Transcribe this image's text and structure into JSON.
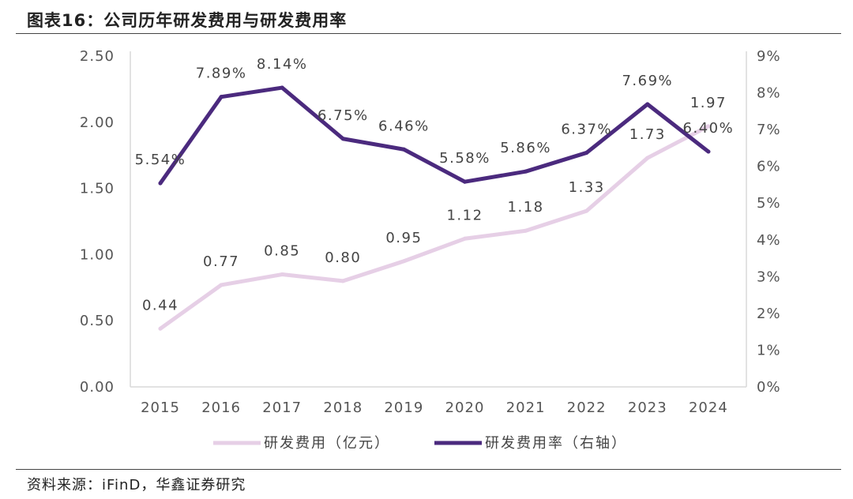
{
  "title": "图表16：公司历年研发费用与研发费用率",
  "source": "资料来源：iFinD，华鑫证券研究",
  "colors": {
    "expense": "#e6cfe6",
    "rate": "#4b2a7e",
    "axis": "#d9d9d9"
  },
  "chart_data": {
    "type": "line",
    "categories": [
      "2015",
      "2016",
      "2017",
      "2018",
      "2019",
      "2020",
      "2021",
      "2022",
      "2023",
      "2024"
    ],
    "series": [
      {
        "name": "研发费用（亿元）",
        "axis": "left",
        "values": [
          0.44,
          0.77,
          0.85,
          0.8,
          0.95,
          1.12,
          1.18,
          1.33,
          1.73,
          1.97
        ],
        "labels": [
          "0.44",
          "0.77",
          "0.85",
          "0.80",
          "0.95",
          "1.12",
          "1.18",
          "1.33",
          "1.73",
          "1.97"
        ]
      },
      {
        "name": "研发费用率（右轴）",
        "axis": "right",
        "values": [
          5.54,
          7.89,
          8.14,
          6.75,
          6.46,
          5.58,
          5.86,
          6.37,
          7.69,
          6.4
        ],
        "labels": [
          "5.54%",
          "7.89%",
          "8.14%",
          "6.75%",
          "6.46%",
          "5.58%",
          "5.86%",
          "6.37%",
          "7.69%",
          "6.40%"
        ]
      }
    ],
    "left_axis": {
      "ylim": [
        0,
        2.5
      ],
      "ticks": [
        "0.00",
        "0.50",
        "1.00",
        "1.50",
        "2.00",
        "2.50"
      ]
    },
    "right_axis": {
      "ylim": [
        0,
        9
      ],
      "ticks": [
        "0%",
        "1%",
        "2%",
        "3%",
        "4%",
        "5%",
        "6%",
        "7%",
        "8%",
        "9%"
      ]
    },
    "legend_position": "bottom",
    "grid": false
  }
}
